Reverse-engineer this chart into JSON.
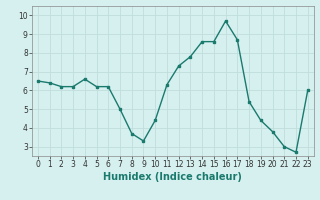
{
  "x": [
    0,
    1,
    2,
    3,
    4,
    5,
    6,
    7,
    8,
    9,
    10,
    11,
    12,
    13,
    14,
    15,
    16,
    17,
    18,
    19,
    20,
    21,
    22,
    23
  ],
  "y": [
    6.5,
    6.4,
    6.2,
    6.2,
    6.6,
    6.2,
    6.2,
    5.0,
    3.7,
    3.3,
    4.4,
    6.3,
    7.3,
    7.8,
    8.6,
    8.6,
    9.7,
    8.7,
    5.4,
    4.4,
    3.8,
    3.0,
    2.7,
    6.0
  ],
  "line_color": "#1a7a6e",
  "marker": "s",
  "marker_size": 2,
  "bg_color": "#d6f0ef",
  "grid_color": "#c0dedd",
  "xlabel": "Humidex (Indice chaleur)",
  "xlim": [
    -0.5,
    23.5
  ],
  "ylim": [
    2.5,
    10.5
  ],
  "yticks": [
    3,
    4,
    5,
    6,
    7,
    8,
    9,
    10
  ],
  "xticks": [
    0,
    1,
    2,
    3,
    4,
    5,
    6,
    7,
    8,
    9,
    10,
    11,
    12,
    13,
    14,
    15,
    16,
    17,
    18,
    19,
    20,
    21,
    22,
    23
  ],
  "tick_fontsize": 5.5,
  "xlabel_fontsize": 7,
  "linewidth": 1.0
}
